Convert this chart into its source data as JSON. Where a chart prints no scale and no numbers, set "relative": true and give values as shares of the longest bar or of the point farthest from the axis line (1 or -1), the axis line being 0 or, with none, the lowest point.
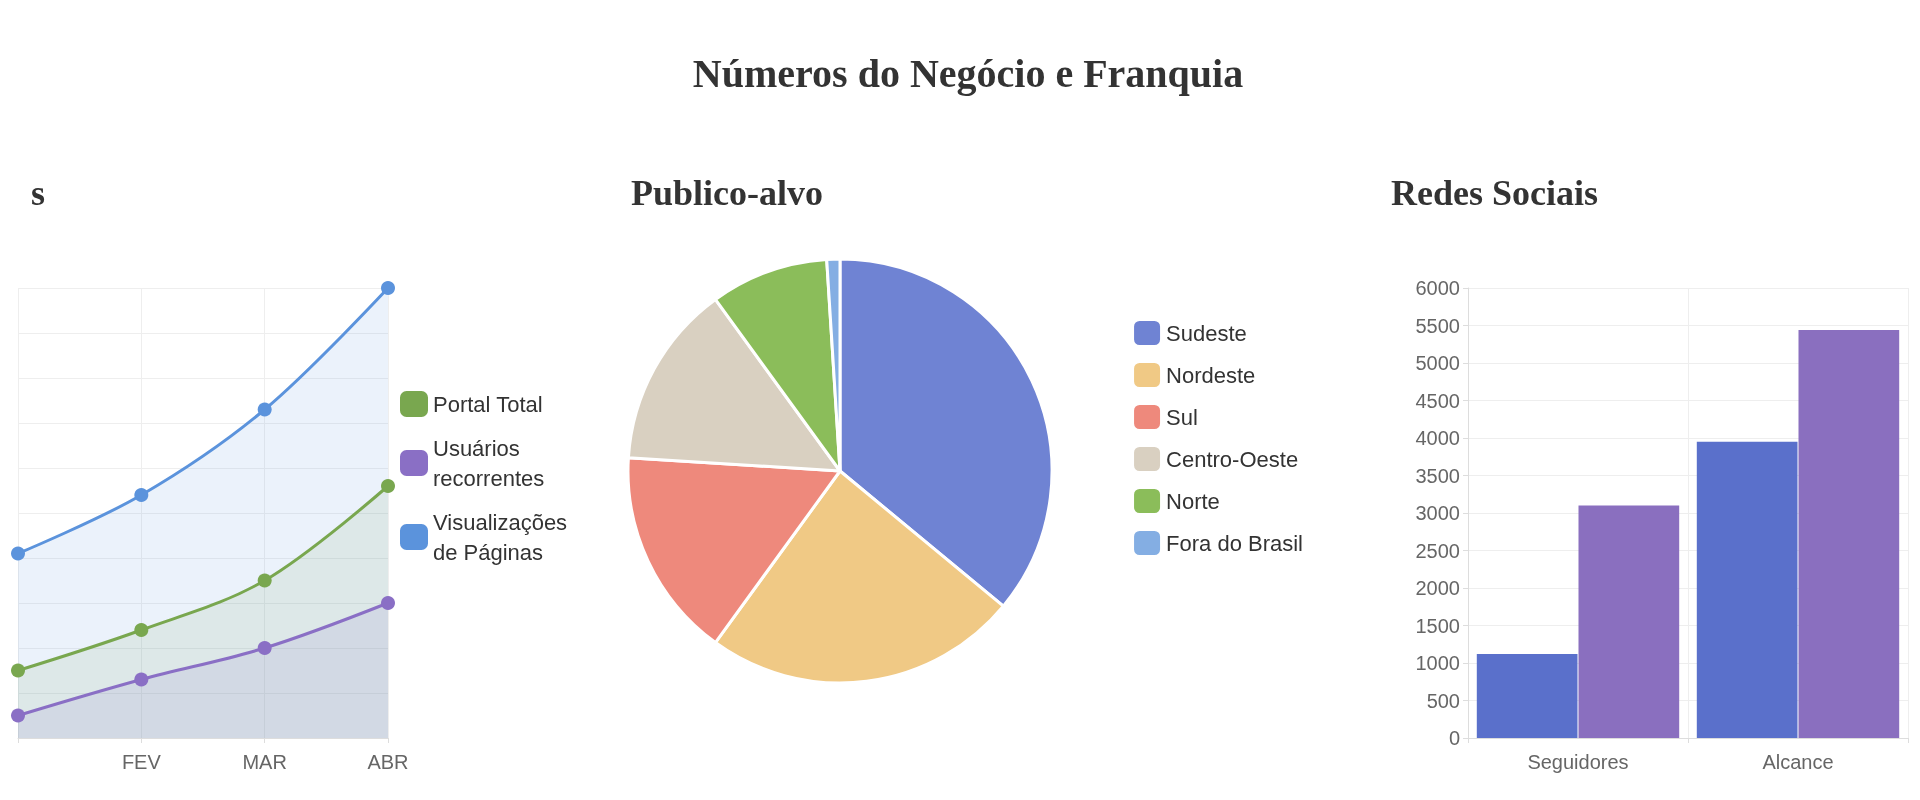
{
  "chart_data": [
    {
      "type": "other",
      "title": "Números do Negócio e Franquia"
    },
    {
      "type": "area",
      "title": "s",
      "categories": [
        null,
        "FEV",
        "MAR",
        "ABR"
      ],
      "relative": true,
      "grid": true,
      "legend": "right",
      "marker": "circle",
      "series": [
        {
          "name": "Portal Total",
          "color": "#79a74f",
          "values": [
            0.15,
            0.24,
            0.35,
            0.56
          ]
        },
        {
          "name": "Usuários recorrentes",
          "color": "#8a6fc5",
          "values": [
            0.05,
            0.13,
            0.2,
            0.3
          ]
        },
        {
          "name": "Visualizações de Páginas",
          "color": "#5b93dc",
          "values": [
            0.41,
            0.54,
            0.73,
            1
          ]
        }
      ]
    },
    {
      "type": "pie",
      "title": "Publico-alvo",
      "legend": "right",
      "categories": [
        "Sudeste",
        "Nordeste",
        "Sul",
        "Centro-Oeste",
        "Norte",
        "Fora do Brasil"
      ],
      "values": [
        36,
        24,
        16,
        14,
        9,
        1
      ],
      "colors": [
        "#6f83d3",
        "#f0c985",
        "#ee897c",
        "#d9d0c1",
        "#8bbd5a",
        "#84aee3"
      ]
    },
    {
      "type": "bar",
      "title": "Redes Sociais",
      "categories": [
        "Seguidores",
        "Alcance"
      ],
      "ylim": [
        0,
        6000
      ],
      "yticks": [
        0,
        500,
        1000,
        1500,
        2000,
        2500,
        3000,
        3500,
        4000,
        4500,
        5000,
        5500,
        6000
      ],
      "grid": true,
      "series": [
        {
          "color": "#5a70cb",
          "values": [
            1120,
            3950
          ]
        },
        {
          "color": "#8a6fbf",
          "values": [
            3100,
            5440
          ]
        }
      ]
    }
  ]
}
